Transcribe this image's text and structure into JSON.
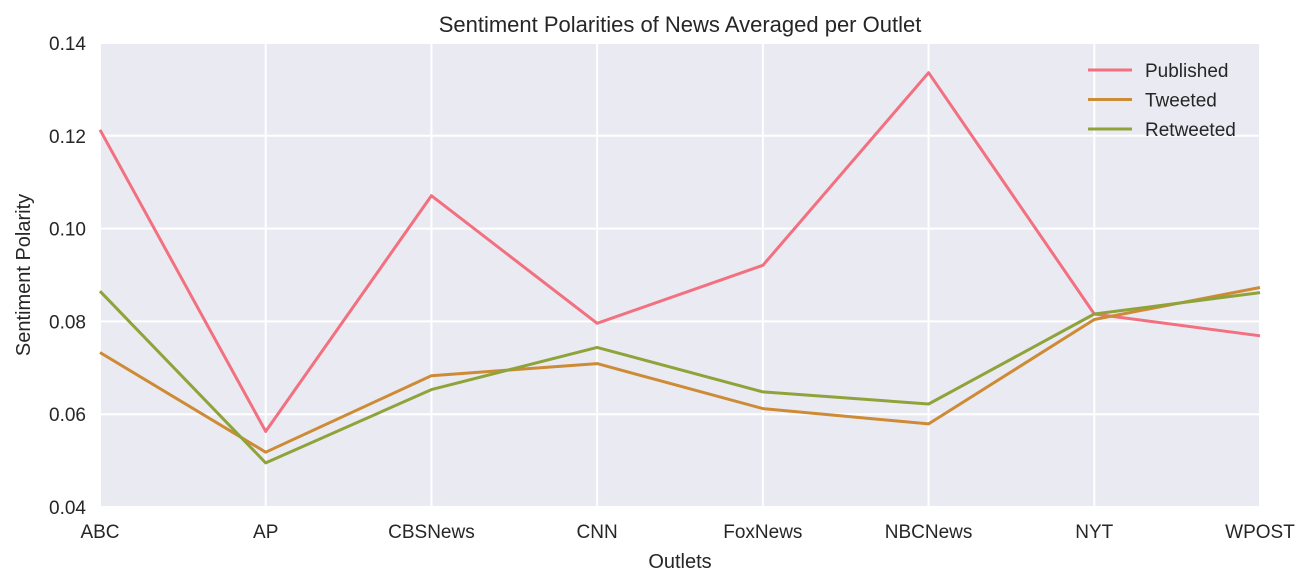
{
  "chart_data": {
    "type": "line",
    "title": "Sentiment Polarities of News Averaged per Outlet",
    "xlabel": "Outlets",
    "ylabel": "Sentiment Polarity",
    "categories": [
      "ABC",
      "AP",
      "CBSNews",
      "CNN",
      "FoxNews",
      "NBCNews",
      "NYT",
      "WPOST"
    ],
    "ylim": [
      0.04,
      0.14
    ],
    "yticks": [
      "0.04",
      "0.06",
      "0.08",
      "0.10",
      "0.12",
      "0.14"
    ],
    "grid": true,
    "legend_position": "top-right",
    "series": [
      {
        "name": "Published",
        "color": "#f2707f",
        "values": [
          0.1213,
          0.0563,
          0.1071,
          0.0796,
          0.0921,
          0.1336,
          0.0816,
          0.0769
        ]
      },
      {
        "name": "Tweeted",
        "color": "#cd8b35",
        "values": [
          0.0733,
          0.0518,
          0.0683,
          0.0709,
          0.0612,
          0.0579,
          0.0804,
          0.0873
        ]
      },
      {
        "name": "Retweeted",
        "color": "#8fa33b",
        "values": [
          0.0865,
          0.0495,
          0.0653,
          0.0744,
          0.0648,
          0.0622,
          0.0816,
          0.0862
        ]
      }
    ]
  }
}
